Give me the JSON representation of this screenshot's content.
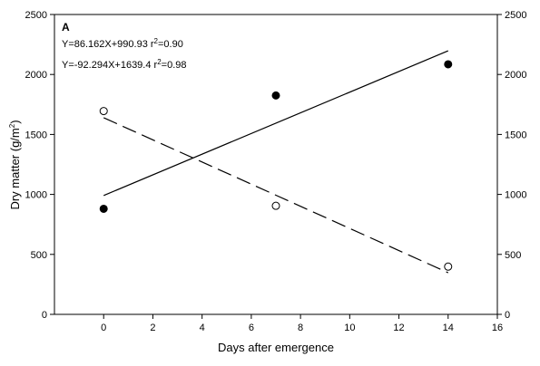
{
  "chart_data": {
    "type": "scatter",
    "panel_label": "A",
    "xlabel": "Days after emergence",
    "ylabel": "Dry matter (g/m",
    "ylabel_sup": "2",
    "ylabel_tail": ")",
    "xlim": [
      -2,
      16
    ],
    "ylim": [
      0,
      2500
    ],
    "x_ticks": [
      0,
      2,
      4,
      6,
      8,
      10,
      12,
      14,
      16
    ],
    "y_ticks": [
      0,
      500,
      1000,
      1500,
      2000,
      2500
    ],
    "right_y_ticks": [
      0,
      500,
      1000,
      1500,
      2000,
      2500
    ],
    "grid": false,
    "series": [
      {
        "marker": "filled-circle",
        "x": [
          0,
          7,
          14
        ],
        "y": [
          880,
          1825,
          2085
        ],
        "fit": {
          "slope": 86.162,
          "intercept": 990.93,
          "style": "solid",
          "x_range": [
            0,
            14
          ]
        }
      },
      {
        "marker": "open-circle",
        "x": [
          0,
          7,
          14
        ],
        "y": [
          1695,
          905,
          398
        ],
        "fit": {
          "slope": -92.294,
          "intercept": 1639.4,
          "style": "dashed",
          "x_range": [
            0,
            14
          ]
        }
      }
    ],
    "equations": [
      {
        "text": "Y=86.162X+990.93 r",
        "sup": "2",
        "tail": "=0.90"
      },
      {
        "text": "Y=-92.294X+1639.4 r",
        "sup": "2",
        "tail": "=0.98"
      }
    ]
  }
}
